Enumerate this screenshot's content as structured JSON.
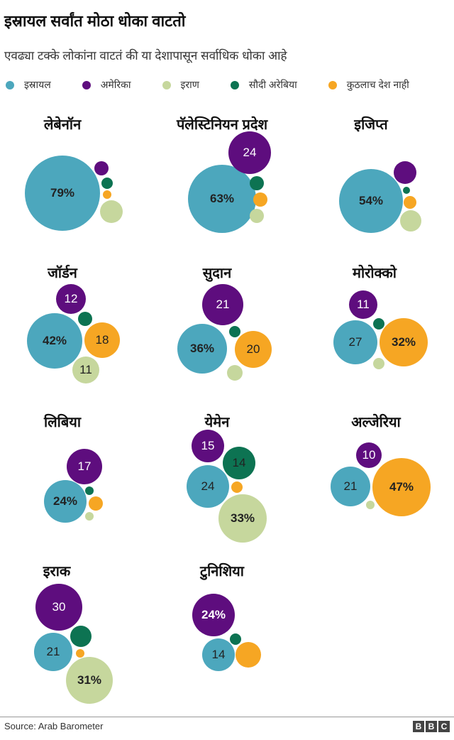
{
  "chart_data": {
    "type": "bubble",
    "title": "इस्रायल सर्वांत मोठा धोका वाटतो",
    "subtitle": "एवढ्या टक्के लोकांना वाटतं की या देशापासून सर्वाधिक धोका आहे",
    "legend": [
      {
        "key": "israel",
        "label": "इस्रायल",
        "color": "#4ca7bd"
      },
      {
        "key": "usa",
        "label": "अमेरिका",
        "color": "#5e0d7e"
      },
      {
        "key": "iran",
        "label": "इराण",
        "color": "#c6d79d"
      },
      {
        "key": "saudi",
        "label": "सौदी अरेबिया",
        "color": "#0d7352"
      },
      {
        "key": "none",
        "label": "कुठलाच देश नाही",
        "color": "#f6a623"
      }
    ],
    "countries": [
      {
        "name": "लेबेनॉन",
        "labels": {
          "israel": "79%"
        }
      },
      {
        "name": "पॅलेस्टिनियन प्रदेश",
        "labels": {
          "israel": "63%",
          "usa": "24"
        }
      },
      {
        "name": "इजिप्त",
        "labels": {
          "israel": "54%"
        }
      },
      {
        "name": "जॉर्डन",
        "labels": {
          "israel": "42%",
          "usa": "12",
          "none": "18",
          "iran": "11"
        }
      },
      {
        "name": "सुदान",
        "labels": {
          "israel": "36%",
          "usa": "21",
          "none": "20"
        }
      },
      {
        "name": "मोरोक्को",
        "labels": {
          "israel": "27",
          "usa": "11",
          "none": "32%"
        }
      },
      {
        "name": "लिबिया",
        "labels": {
          "israel": "24%",
          "usa": "17"
        }
      },
      {
        "name": "येमेन",
        "labels": {
          "israel": "24",
          "usa": "15",
          "saudi": "14",
          "iran": "33%"
        }
      },
      {
        "name": "अल्जेरिया",
        "labels": {
          "israel": "21",
          "usa": "10",
          "none": "47%"
        }
      },
      {
        "name": "इराक",
        "labels": {
          "usa": "30",
          "israel": "21",
          "iran": "31%"
        }
      },
      {
        "name": "टुनिशिया",
        "labels": {
          "usa": "24%",
          "israel": "14"
        }
      }
    ]
  },
  "footer": {
    "source": "Source: Arab Barometer",
    "logo": [
      "B",
      "B",
      "C"
    ]
  }
}
